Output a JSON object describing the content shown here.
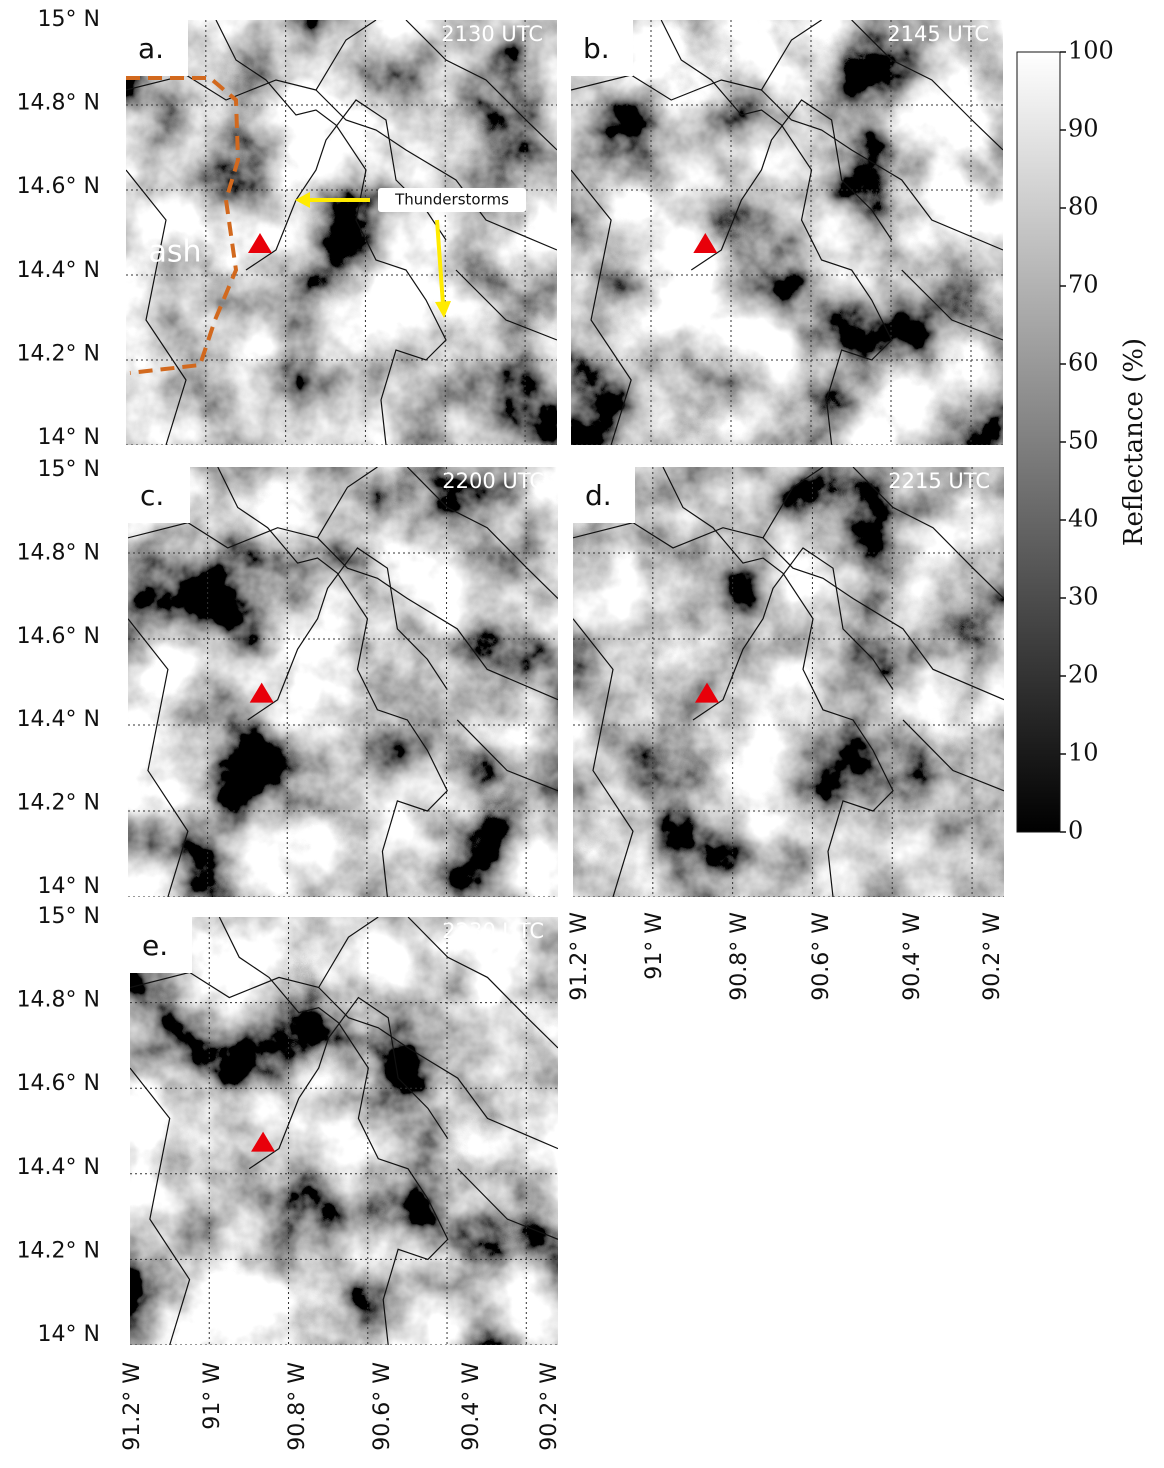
{
  "panels": [
    {
      "label": "a.",
      "time": "2130 UTC"
    },
    {
      "label": "b.",
      "time": "2145 UTC"
    },
    {
      "label": "c.",
      "time": "2200 UTC"
    },
    {
      "label": "d.",
      "time": "2215 UTC"
    },
    {
      "label": "e.",
      "time": "2230 UTC"
    }
  ],
  "lat_labels": [
    "15° N",
    "14.8° N",
    "14.6° N",
    "14.4° N",
    "14.2° N",
    "14° N"
  ],
  "lon_labels": [
    "91.2° W",
    "91° W",
    "90.8° W",
    "90.6° W",
    "90.4° W",
    "90.2° W"
  ],
  "annotations": {
    "ash": "ash",
    "thunderstorms": "Thunderstorms"
  },
  "colorbar": {
    "label": "Reflectance (%)",
    "range": [
      0,
      100
    ],
    "ticks": [
      0,
      10,
      20,
      30,
      40,
      50,
      60,
      70,
      80,
      90,
      100
    ]
  }
}
